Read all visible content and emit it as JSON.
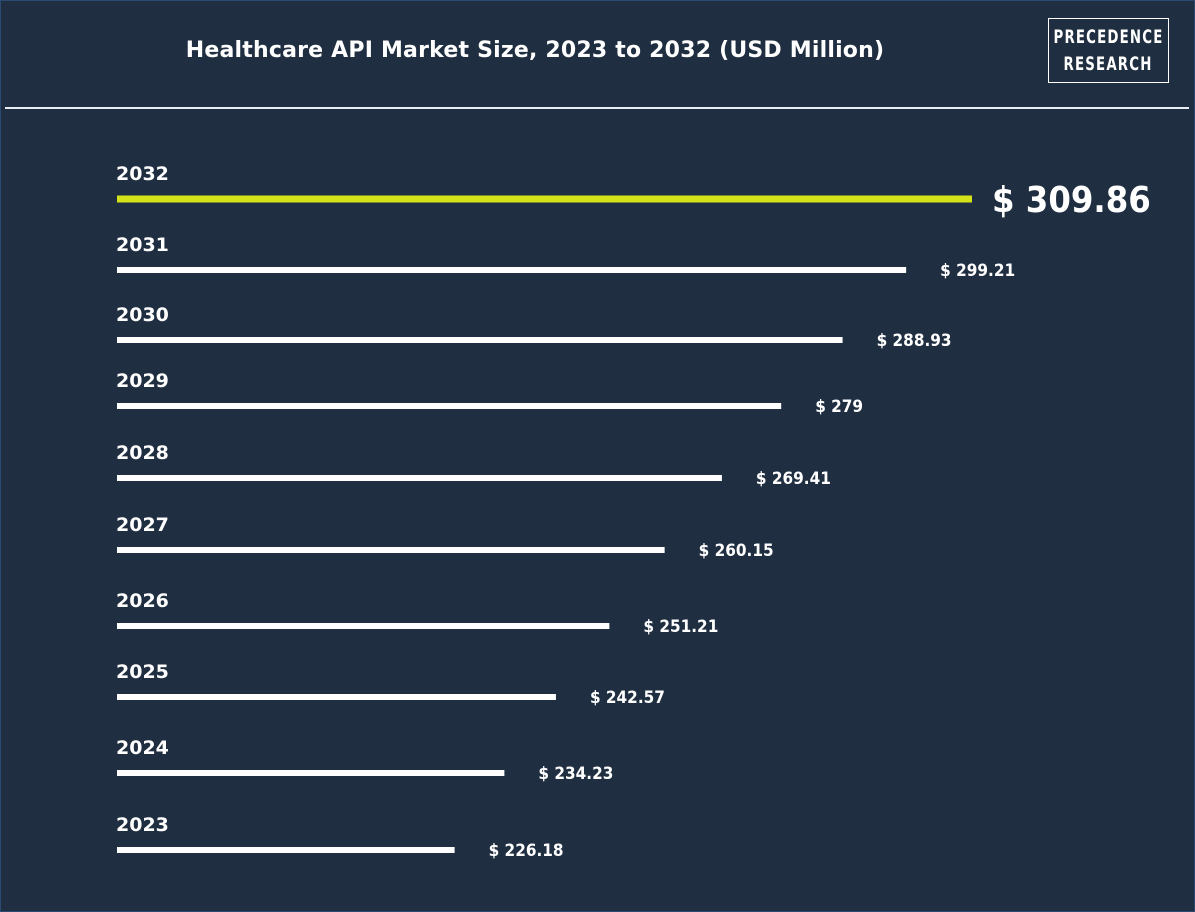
{
  "header": {
    "title": "Healthcare API Market Size, 2023 to 2032 (USD Million)",
    "logo_line1": "PRECEDENCE",
    "logo_line2": "RESEARCH"
  },
  "colors": {
    "background": "#1f2e40",
    "bar": "#ffffff",
    "highlight_bar": "#d4e21a",
    "text": "#ffffff"
  },
  "chart_data": {
    "type": "bar",
    "orientation": "horizontal",
    "title": "Healthcare API Market Size, 2023 to 2032 (USD Million)",
    "categories": [
      "2032",
      "2031",
      "2030",
      "2029",
      "2028",
      "2027",
      "2026",
      "2025",
      "2024",
      "2023"
    ],
    "values": [
      309.86,
      299.21,
      288.93,
      279,
      269.41,
      260.15,
      251.21,
      242.57,
      234.23,
      226.18
    ],
    "value_labels": [
      "$ 309.86",
      "$ 299.21",
      "$ 288.93",
      "$ 279",
      "$ 269.41",
      "$ 260.15",
      "$ 251.21",
      "$ 242.57",
      "$ 234.23",
      "$ 226.18"
    ],
    "highlight_category": "2032",
    "grid": false,
    "legend": "none"
  }
}
